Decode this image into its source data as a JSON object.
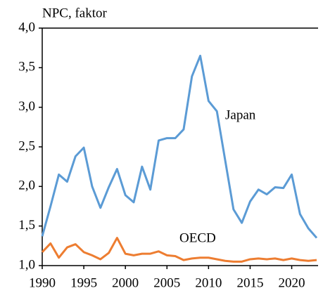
{
  "chart_data": {
    "type": "line",
    "title": "NPC, faktor",
    "x": [
      1990,
      1991,
      1992,
      1993,
      1994,
      1995,
      1996,
      1997,
      1998,
      1999,
      2000,
      2001,
      2002,
      2003,
      2004,
      2005,
      2006,
      2007,
      2008,
      2009,
      2010,
      2011,
      2012,
      2013,
      2014,
      2015,
      2016,
      2017,
      2018,
      2019,
      2020,
      2021,
      2022,
      2023
    ],
    "series": [
      {
        "name": "Japan",
        "color": "#5b9bd5",
        "values": [
          1.37,
          1.75,
          2.15,
          2.06,
          2.38,
          2.49,
          2.0,
          1.73,
          1.99,
          2.22,
          1.89,
          1.8,
          2.25,
          1.96,
          2.58,
          2.61,
          2.61,
          2.72,
          3.39,
          3.65,
          3.08,
          2.95,
          2.33,
          1.71,
          1.54,
          1.81,
          1.96,
          1.9,
          1.99,
          1.98,
          2.15,
          1.65,
          1.47,
          1.35
        ]
      },
      {
        "name": "OECD",
        "color": "#ed7d31",
        "values": [
          1.17,
          1.28,
          1.1,
          1.23,
          1.27,
          1.17,
          1.13,
          1.08,
          1.16,
          1.35,
          1.15,
          1.13,
          1.15,
          1.15,
          1.18,
          1.13,
          1.12,
          1.07,
          1.09,
          1.1,
          1.1,
          1.08,
          1.06,
          1.05,
          1.05,
          1.08,
          1.09,
          1.08,
          1.09,
          1.07,
          1.09,
          1.07,
          1.06,
          1.07
        ]
      }
    ],
    "xlim": [
      1990,
      2023
    ],
    "xticks": [
      1990,
      1995,
      2000,
      2005,
      2010,
      2015,
      2020
    ],
    "ylim": [
      1,
      4
    ],
    "yticks": [
      {
        "value": 1,
        "label": "1,0"
      },
      {
        "value": 1.5,
        "label": "1,5"
      },
      {
        "value": 2,
        "label": "2,0"
      },
      {
        "value": 2.5,
        "label": "2,5"
      },
      {
        "value": 3,
        "label": "3,0"
      },
      {
        "value": 3.5,
        "label": "3,5"
      },
      {
        "value": 4,
        "label": "4,0"
      }
    ]
  }
}
